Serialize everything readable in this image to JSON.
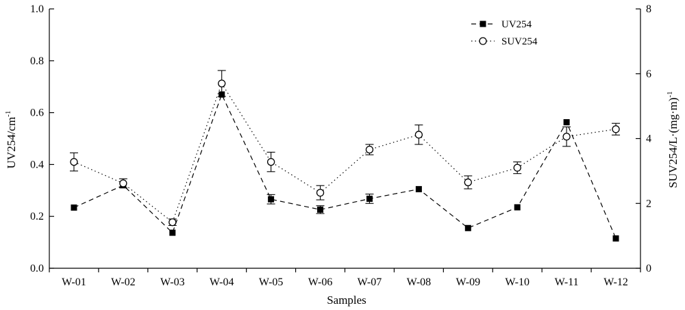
{
  "chart_data": {
    "type": "line",
    "xlabel": "Samples",
    "categories": [
      "W-01",
      "W-02",
      "W-03",
      "W-04",
      "W-05",
      "W-06",
      "W-07",
      "W-08",
      "W-09",
      "W-10",
      "W-11",
      "W-12"
    ],
    "y_left": {
      "label": "UV254/cm",
      "label_superscript": "-1",
      "ylim": [
        0,
        1.0
      ],
      "ticks": [
        "0.0",
        "0.2",
        "0.4",
        "0.6",
        "0.8",
        "1.0"
      ]
    },
    "y_right": {
      "label": "SUV254/L·(mg·m)",
      "label_superscript": "-1",
      "ylim": [
        0,
        8
      ],
      "ticks": [
        "0",
        "2",
        "4",
        "6",
        "8"
      ]
    },
    "series": [
      {
        "name": "UV254",
        "axis": "left",
        "marker": "filled-square",
        "line_style": "dashed",
        "values": [
          0.234,
          0.32,
          0.137,
          0.67,
          0.266,
          0.226,
          0.268,
          0.305,
          0.155,
          0.235,
          0.563,
          0.115
        ],
        "errors": [
          0.0,
          0.0,
          0.0,
          0.0,
          0.018,
          0.015,
          0.018,
          0.0,
          0.0,
          0.0,
          0.0,
          0.0
        ]
      },
      {
        "name": "SUV254",
        "axis": "right",
        "marker": "open-circle",
        "line_style": "dotted",
        "values": [
          3.28,
          2.62,
          1.42,
          5.7,
          3.28,
          2.33,
          3.66,
          4.12,
          2.65,
          3.1,
          4.06,
          4.29
        ],
        "errors": [
          0.28,
          0.14,
          0.1,
          0.4,
          0.3,
          0.22,
          0.16,
          0.3,
          0.2,
          0.18,
          0.3,
          0.18
        ]
      }
    ],
    "legend_position": "top-right",
    "grid": false,
    "colors": {
      "axis": "#000000",
      "series": "#000000"
    }
  }
}
